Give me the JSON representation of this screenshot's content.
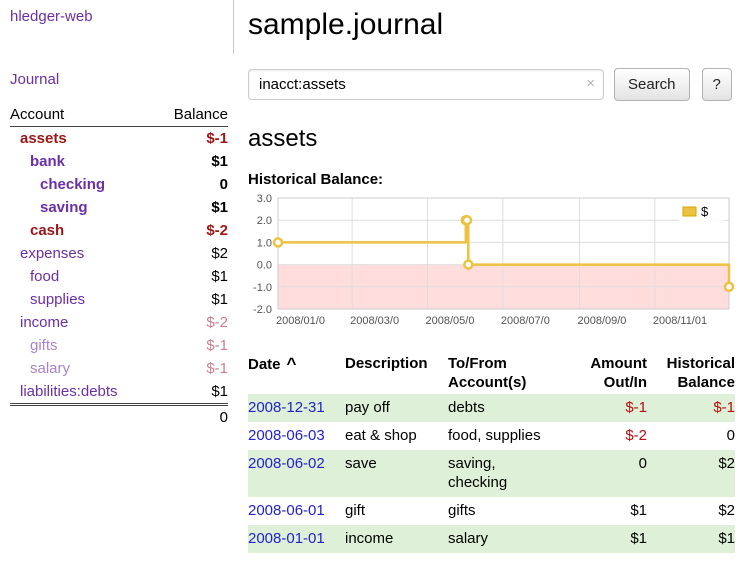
{
  "app": {
    "title": "hledger-web"
  },
  "colors": {
    "link_purple": "#6b2fa8",
    "link_purple_faded": "#a884c6",
    "link_blue": "#2222cc",
    "negative": "#9c1616",
    "negative_bright": "#bb0e0e",
    "negative_soft": "#c9808e",
    "row_green": "#dff0d8"
  },
  "sidebar": {
    "journal_link": "Journal",
    "table_headers": {
      "account": "Account",
      "balance": "Balance"
    },
    "accounts": [
      {
        "name": "assets",
        "balance": "$-1"
      },
      {
        "name": "bank",
        "balance": "$1"
      },
      {
        "name": "checking",
        "balance": "0"
      },
      {
        "name": "saving",
        "balance": "$1"
      },
      {
        "name": "cash",
        "balance": "$-2"
      },
      {
        "name": "expenses",
        "balance": "$2"
      },
      {
        "name": "food",
        "balance": "$1"
      },
      {
        "name": "supplies",
        "balance": "$1"
      },
      {
        "name": "income",
        "balance": "$-2"
      },
      {
        "name": "gifts",
        "balance": "$-1"
      },
      {
        "name": "salary",
        "balance": "$-1"
      },
      {
        "name": "liabilities:debts",
        "balance": "$1"
      }
    ],
    "total_balance": "0"
  },
  "main": {
    "title": "sample.journal",
    "search": {
      "value": "inacct:assets",
      "clear_icon": "×",
      "search_button": "Search",
      "help_button": "?"
    },
    "account_title": "assets",
    "chart_title": "Historical Balance:"
  },
  "chart_data": {
    "type": "line",
    "step": true,
    "title": "Historical Balance",
    "series_name": "$",
    "series_color": "#edc240",
    "points": [
      {
        "date": "2008-01-01",
        "value": 1
      },
      {
        "date": "2008-06-01",
        "value": 2
      },
      {
        "date": "2008-06-02",
        "value": 2
      },
      {
        "date": "2008-06-03",
        "value": 0
      },
      {
        "date": "2008-12-31",
        "value": -1
      }
    ],
    "ylim": [
      -2,
      3
    ],
    "yticks": [
      3,
      2,
      1,
      0,
      -1,
      -2
    ],
    "xrange": [
      "2008-01-01",
      "2008-12-31"
    ],
    "xticks": [
      {
        "date": "2008-01-01",
        "label": "2008/01/0"
      },
      {
        "date": "2008-03-01",
        "label": "2008/03/0"
      },
      {
        "date": "2008-05-01",
        "label": "2008/05/0"
      },
      {
        "date": "2008-07-01",
        "label": "2008/07/0"
      },
      {
        "date": "2008-09-01",
        "label": "2008/09/0"
      },
      {
        "date": "2008-11-01",
        "label": "2008/11/01"
      }
    ],
    "negative_region_color": "#ffdddd",
    "grid": true,
    "legend_position": "top-right"
  },
  "register": {
    "headers": {
      "date": "Date",
      "sort_indicator": "^",
      "description": "Description",
      "account": "To/From Account(s)",
      "amount": "Amount Out/In",
      "balance": "Historical Balance"
    },
    "rows": [
      {
        "date": "2008-12-31",
        "description": "pay off",
        "account": "debts",
        "amount": "$-1",
        "balance": "$-1"
      },
      {
        "date": "2008-06-03",
        "description": "eat & shop",
        "account": "food, supplies",
        "amount": "$-2",
        "balance": "0"
      },
      {
        "date": "2008-06-02",
        "description": "save",
        "account": "saving, checking",
        "amount": "0",
        "balance": "$2"
      },
      {
        "date": "2008-06-01",
        "description": "gift",
        "account": "gifts",
        "amount": "$1",
        "balance": "$2"
      },
      {
        "date": "2008-01-01",
        "description": "income",
        "account": "salary",
        "amount": "$1",
        "balance": "$1"
      }
    ]
  }
}
